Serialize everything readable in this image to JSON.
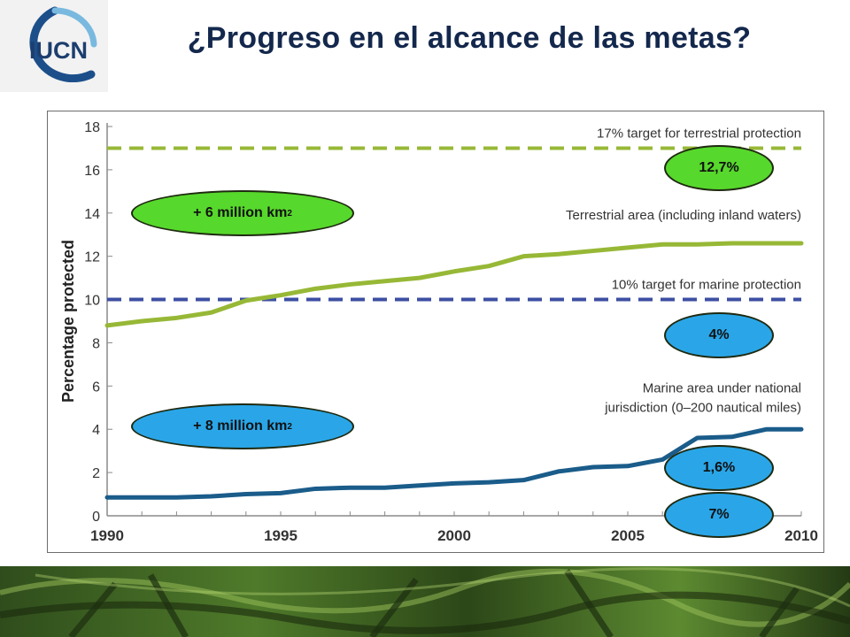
{
  "title": "¿Progreso en el alcance de las metas?",
  "logo": {
    "text": "IUCN",
    "icon": "iucn-globe-icon"
  },
  "colors": {
    "terrestrial": "#97b836",
    "marine": "#1a5c8a",
    "marine_target": "#3d4fa3",
    "green_pill": "#57d82c",
    "blue_pill": "#2aa6e8"
  },
  "chart_data": {
    "type": "line",
    "xlim": [
      1990,
      2010
    ],
    "ylim": [
      0,
      18
    ],
    "ylabel": "Percentage protected",
    "xlabel": "",
    "x_ticks": [
      1990,
      1995,
      2000,
      2005,
      2010
    ],
    "y_ticks": [
      0,
      2,
      4,
      6,
      8,
      10,
      12,
      14,
      16,
      18
    ],
    "grid": false,
    "x": [
      1990,
      1991,
      1992,
      1993,
      1994,
      1995,
      1996,
      1997,
      1998,
      1999,
      2000,
      2001,
      2002,
      2003,
      2004,
      2005,
      2006,
      2007,
      2008,
      2009,
      2010
    ],
    "series": [
      {
        "name": "Terrestrial area (including inland waters)",
        "values": [
          8.8,
          9.0,
          9.15,
          9.4,
          9.95,
          10.2,
          10.5,
          10.7,
          10.85,
          11.0,
          11.3,
          11.55,
          12.0,
          12.1,
          12.25,
          12.4,
          12.55,
          12.55,
          12.6,
          12.6,
          12.6
        ]
      },
      {
        "name": "Marine area under national jurisdiction (0–200 nautical miles)",
        "values": [
          0.85,
          0.85,
          0.85,
          0.9,
          1.0,
          1.05,
          1.25,
          1.3,
          1.3,
          1.4,
          1.5,
          1.55,
          1.65,
          2.05,
          2.25,
          2.3,
          2.6,
          3.6,
          3.65,
          4.0,
          4.0
        ]
      }
    ],
    "targets": [
      {
        "label": "17% target for terrestrial protection",
        "value": 17
      },
      {
        "label": "10% target for marine protection",
        "value": 10
      }
    ],
    "series_labels": [
      {
        "lines": [
          "Terrestrial area (including inland waters)"
        ]
      },
      {
        "lines": [
          "Marine area under national",
          "jurisdiction (0–200 nautical miles)"
        ]
      }
    ],
    "callouts": [
      {
        "text": "12,7%",
        "style": "green"
      },
      {
        "text": "+ 6 million km",
        "sup": "2",
        "style": "green"
      },
      {
        "text": "4%",
        "style": "blue"
      },
      {
        "text": "+ 8 million km",
        "sup": "2",
        "style": "blue"
      },
      {
        "text": "1,6%",
        "style": "blue"
      },
      {
        "text": "7%",
        "style": "blue"
      }
    ]
  }
}
